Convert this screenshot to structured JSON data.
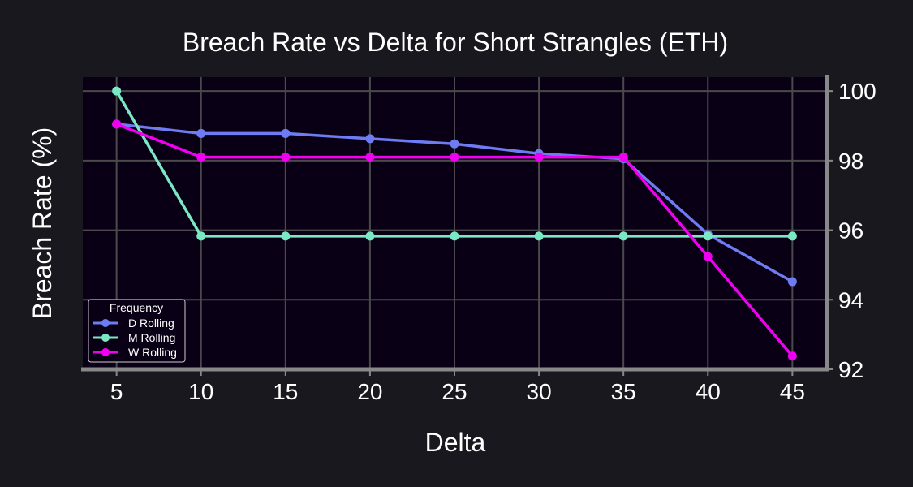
{
  "chart_data": {
    "type": "line",
    "title": "Breach Rate vs Delta for Short Strangles (ETH)",
    "xlabel": "Delta",
    "ylabel": "Breach Rate (%)",
    "x": [
      5,
      10,
      15,
      20,
      25,
      30,
      35,
      40,
      45
    ],
    "xlim": [
      3,
      47
    ],
    "ylim": [
      92,
      100.4
    ],
    "yticks": [
      92,
      94,
      96,
      98,
      100
    ],
    "y_axis_side": "right",
    "grid": true,
    "legend": {
      "title": "Frequency",
      "placement": "bottom-left"
    },
    "series": [
      {
        "name": "D Rolling",
        "color": "#6e7bf2",
        "values": [
          99.05,
          98.78,
          98.78,
          98.63,
          98.48,
          98.2,
          98.05,
          95.88,
          94.52
        ]
      },
      {
        "name": "M Rolling",
        "color": "#7ae8c5",
        "values": [
          100,
          95.83,
          95.83,
          95.83,
          95.83,
          95.83,
          95.83,
          95.83,
          95.83
        ]
      },
      {
        "name": "W Rolling",
        "color": "#f000f0",
        "values": [
          99.05,
          98.1,
          98.1,
          98.1,
          98.1,
          98.1,
          98.1,
          95.24,
          92.38
        ]
      }
    ],
    "colors": {
      "background": "#19181e",
      "plot_background": "#0a0015",
      "grid": "#4a4a4a",
      "spine": "#888888",
      "text": "#ffffff"
    }
  }
}
